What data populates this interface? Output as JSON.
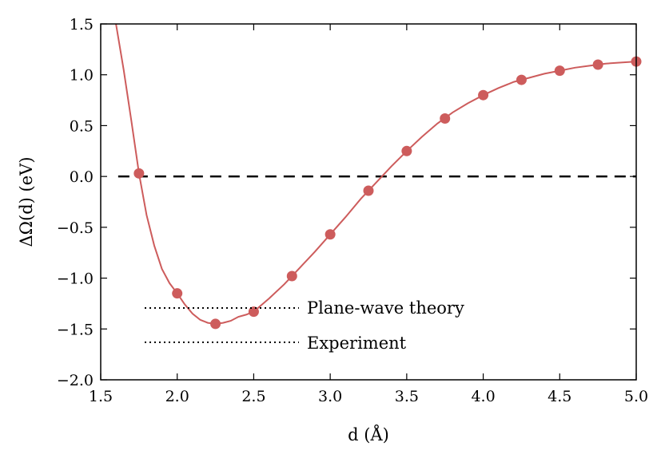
{
  "chart_data": {
    "type": "line",
    "xlabel": "d (Å)",
    "ylabel": "ΔΩ(d) (eV)",
    "xlim": [
      1.5,
      5.0
    ],
    "ylim": [
      -2.0,
      1.5
    ],
    "x_ticks": [
      "1.5",
      "2.0",
      "2.5",
      "3.0",
      "3.5",
      "4.0",
      "4.5",
      "5.0"
    ],
    "y_ticks": [
      "1.5",
      "1.0",
      "0.5",
      "0.0",
      "−0.5",
      "−1.0",
      "−1.5",
      "−2.0"
    ],
    "grid": false,
    "series": [
      {
        "color": "#cd5c5c",
        "marker": "circle",
        "x": [
          1.75,
          2.0,
          2.25,
          2.5,
          2.75,
          3.0,
          3.25,
          3.5,
          3.75,
          4.0,
          4.25,
          4.5,
          4.75,
          5.0
        ],
        "y": [
          0.03,
          -1.15,
          -1.45,
          -1.33,
          -0.98,
          -0.57,
          -0.14,
          0.25,
          0.57,
          0.8,
          0.95,
          1.04,
          1.1,
          1.13
        ]
      }
    ],
    "curve": {
      "color": "#cd5c5c",
      "x": [
        1.6,
        1.65,
        1.7,
        1.75,
        1.8,
        1.85,
        1.9,
        1.95,
        2.0,
        2.05,
        2.1,
        2.15,
        2.2,
        2.25,
        2.3,
        2.35,
        2.4,
        2.45,
        2.5,
        2.6,
        2.7,
        2.8,
        2.9,
        3.0,
        3.1,
        3.2,
        3.3,
        3.4,
        3.5,
        3.6,
        3.7,
        3.8,
        3.9,
        4.0,
        4.1,
        4.2,
        4.3,
        4.4,
        4.5,
        4.6,
        4.7,
        4.8,
        4.9,
        5.0
      ],
      "y": [
        1.5,
        1.05,
        0.55,
        0.03,
        -0.38,
        -0.68,
        -0.91,
        -1.05,
        -1.15,
        -1.26,
        -1.35,
        -1.41,
        -1.44,
        -1.45,
        -1.44,
        -1.42,
        -1.38,
        -1.36,
        -1.33,
        -1.2,
        -1.06,
        -0.9,
        -0.74,
        -0.57,
        -0.4,
        -0.22,
        -0.06,
        0.1,
        0.25,
        0.39,
        0.52,
        0.63,
        0.72,
        0.8,
        0.87,
        0.93,
        0.97,
        1.01,
        1.04,
        1.07,
        1.09,
        1.11,
        1.12,
        1.13
      ]
    },
    "reference_line": {
      "y": 0.0,
      "style": "dashed",
      "color": "#000000"
    },
    "legend": [
      {
        "label": "Plane-wave theory",
        "style": "dotted"
      },
      {
        "label": "Experiment",
        "style": "dotted"
      }
    ]
  }
}
